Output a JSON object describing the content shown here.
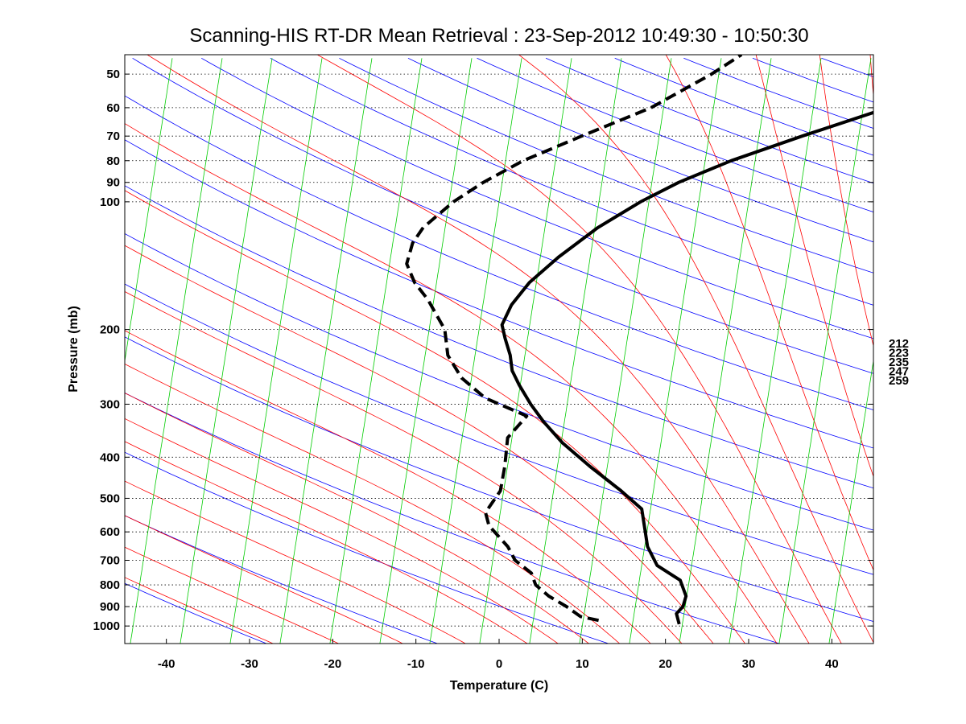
{
  "chart_data": {
    "type": "line",
    "subtype": "skew-T log-P thermodynamic diagram",
    "title": "Scanning-HIS RT-DR Mean Retrieval : 23-Sep-2012 10:49:30 - 10:50:30",
    "xlabel": "Temperature (C)",
    "ylabel": "Pressure (mb)",
    "xlim": [
      -45,
      45
    ],
    "ylim_mb": [
      1100,
      45
    ],
    "yscale": "log",
    "skew_per_decade_C": 35,
    "x_ticks": [
      "-40",
      "-30",
      "-20",
      "-10",
      "0",
      "10",
      "20",
      "30",
      "40"
    ],
    "x_tick_values": [
      -40,
      -30,
      -20,
      -10,
      0,
      10,
      20,
      30,
      40
    ],
    "y_ticks": [
      "50",
      "60",
      "70",
      "80",
      "90",
      "100",
      "200",
      "300",
      "400",
      "500",
      "600",
      "700",
      "800",
      "900",
      "1000"
    ],
    "y_tick_values": [
      50,
      60,
      70,
      80,
      90,
      100,
      200,
      300,
      400,
      500,
      600,
      700,
      800,
      900,
      1000
    ],
    "grid": "dotted horizontal isobars",
    "right_labels": [
      "212",
      "223",
      "235",
      "247",
      "259"
    ],
    "background_lines": {
      "dry_adiabats_color": "#0000ff",
      "moist_adiabats_color": "#ff0000",
      "mixing_ratio_color": "#00cc00",
      "dry_adiabat_thetas_K": [
        220,
        240,
        260,
        280,
        300,
        320,
        340,
        360,
        380,
        400,
        420,
        440,
        460,
        480,
        500,
        520,
        540,
        560,
        580,
        600,
        620,
        640
      ],
      "moist_adiabat_bases_C": [
        -32,
        -24,
        -16,
        -8,
        0,
        4,
        8,
        12,
        16,
        20,
        24,
        28,
        32,
        36,
        40,
        44,
        48,
        52,
        56,
        60,
        64
      ],
      "mixing_ratio_offsets_C": [
        -50,
        -44,
        -38,
        -32,
        -26,
        -20,
        -14,
        -8,
        -2,
        4,
        10,
        16,
        22,
        28,
        34,
        40,
        46,
        52,
        58,
        64,
        70,
        76,
        82,
        88
      ]
    },
    "series": [
      {
        "name": "Temperature",
        "style": "solid",
        "color": "#000000",
        "points": [
          {
            "p": 990,
            "t": 21.5
          },
          {
            "p": 935,
            "t": 20.3
          },
          {
            "p": 900,
            "t": 20.5
          },
          {
            "p": 850,
            "t": 20.0
          },
          {
            "p": 780,
            "t": 18.0
          },
          {
            "p": 720,
            "t": 14.0
          },
          {
            "p": 650,
            "t": 11.3
          },
          {
            "p": 590,
            "t": 9.5
          },
          {
            "p": 530,
            "t": 7.5
          },
          {
            "p": 480,
            "t": 3.5
          },
          {
            "p": 420,
            "t": -2.3
          },
          {
            "p": 370,
            "t": -7.5
          },
          {
            "p": 330,
            "t": -11.5
          },
          {
            "p": 300,
            "t": -14.5
          },
          {
            "p": 270,
            "t": -17.5
          },
          {
            "p": 250,
            "t": -19.5
          },
          {
            "p": 230,
            "t": -21.0
          },
          {
            "p": 210,
            "t": -23.0
          },
          {
            "p": 195,
            "t": -24.5
          },
          {
            "p": 175,
            "t": -25.0
          },
          {
            "p": 155,
            "t": -24.7
          },
          {
            "p": 135,
            "t": -23.3
          },
          {
            "p": 115,
            "t": -21.0
          },
          {
            "p": 100,
            "t": -18.0
          },
          {
            "p": 90,
            "t": -15.0
          },
          {
            "p": 80,
            "t": -10.5
          },
          {
            "p": 70,
            "t": -4.0
          },
          {
            "p": 60,
            "t": 4.0
          },
          {
            "p": 52,
            "t": 10.0
          },
          {
            "p": 45,
            "t": 15.5
          }
        ]
      },
      {
        "name": "Dewpoint",
        "style": "dashed",
        "color": "#000000",
        "points": [
          {
            "p": 970,
            "t": 11.5
          },
          {
            "p": 950,
            "t": 9.0
          },
          {
            "p": 900,
            "t": 6.5
          },
          {
            "p": 850,
            "t": 3.5
          },
          {
            "p": 800,
            "t": 1.0
          },
          {
            "p": 750,
            "t": -0.5
          },
          {
            "p": 700,
            "t": -3.5
          },
          {
            "p": 650,
            "t": -5.5
          },
          {
            "p": 580,
            "t": -9.5
          },
          {
            "p": 540,
            "t": -11.0
          },
          {
            "p": 480,
            "t": -11.0
          },
          {
            "p": 420,
            "t": -12.5
          },
          {
            "p": 360,
            "t": -14.5
          },
          {
            "p": 320,
            "t": -14.0
          },
          {
            "p": 290,
            "t": -20.5
          },
          {
            "p": 260,
            "t": -25.0
          },
          {
            "p": 230,
            "t": -28.5
          },
          {
            "p": 200,
            "t": -31.0
          },
          {
            "p": 170,
            "t": -35.5
          },
          {
            "p": 155,
            "t": -38.5
          },
          {
            "p": 140,
            "t": -41.0
          },
          {
            "p": 125,
            "t": -42.0
          },
          {
            "p": 115,
            "t": -42.0
          },
          {
            "p": 100,
            "t": -40.5
          },
          {
            "p": 90,
            "t": -38.5
          },
          {
            "p": 80,
            "t": -35.5
          },
          {
            "p": 70,
            "t": -30.5
          },
          {
            "p": 60,
            "t": -24.5
          },
          {
            "p": 50,
            "t": -20.0
          },
          {
            "p": 45,
            "t": -18.0
          }
        ]
      }
    ]
  }
}
